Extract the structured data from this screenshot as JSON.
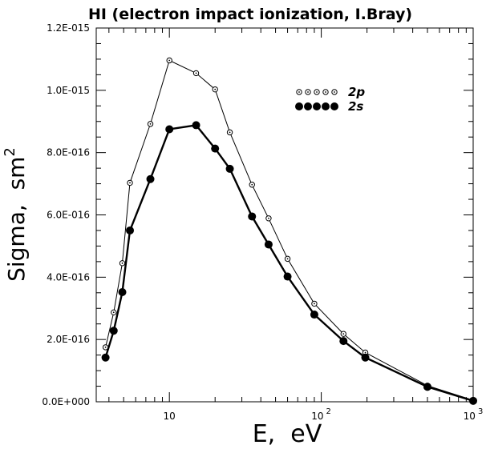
{
  "chart_data": {
    "type": "line",
    "title": "HI (electron impact ionization, I.Bray)",
    "xlabel": "E,  eV",
    "ylabel_base": "Sigma,  sm",
    "ylabel_sup": "2",
    "x_scale": "log",
    "xlim": [
      3.3,
      1000
    ],
    "ylim": [
      0,
      1.2e-15
    ],
    "x_ticks": [
      {
        "value": 10,
        "base": "10",
        "sup": ""
      },
      {
        "value": 100,
        "base": "10",
        "sup": "2"
      },
      {
        "value": 1000,
        "base": "10",
        "sup": "3"
      }
    ],
    "y_ticks": [
      {
        "value": 0,
        "label": "0.0E+000"
      },
      {
        "value": 2e-16,
        "label": "2.0E-016"
      },
      {
        "value": 4e-16,
        "label": "4.0E-016"
      },
      {
        "value": 6e-16,
        "label": "6.0E-016"
      },
      {
        "value": 8e-16,
        "label": "8.0E-016"
      },
      {
        "value": 1e-15,
        "label": "1.0E-015"
      },
      {
        "value": 1.2e-15,
        "label": "1.2E-015"
      }
    ],
    "grid": false,
    "legend_position": "top-right",
    "series": [
      {
        "name": "2p",
        "marker": "open-dot",
        "color": "#000000",
        "x": [
          3.8,
          4.3,
          4.9,
          5.5,
          7.5,
          10,
          15,
          20,
          25,
          35,
          45,
          60,
          90,
          140,
          195,
          500,
          1000
        ],
        "y": [
          1.75e-16,
          2.87e-16,
          4.45e-16,
          7.03e-16,
          8.92e-16,
          1.096e-15,
          1.055e-15,
          1.003e-15,
          8.65e-16,
          6.97e-16,
          5.89e-16,
          4.59e-16,
          3.15e-16,
          2.18e-16,
          1.58e-16,
          5.2e-17,
          5e-18
        ]
      },
      {
        "name": "2s",
        "marker": "filled-dot",
        "color": "#000000",
        "x": [
          3.8,
          4.3,
          4.9,
          5.5,
          7.5,
          10,
          15,
          20,
          25,
          35,
          45,
          60,
          90,
          140,
          195,
          500,
          1000
        ],
        "y": [
          1.42e-16,
          2.28e-16,
          3.52e-16,
          5.5e-16,
          7.15e-16,
          8.75e-16,
          8.88e-16,
          8.13e-16,
          7.48e-16,
          5.95e-16,
          5.05e-16,
          4.02e-16,
          2.8e-16,
          1.95e-16,
          1.42e-16,
          4.8e-17,
          3e-18
        ]
      }
    ]
  }
}
